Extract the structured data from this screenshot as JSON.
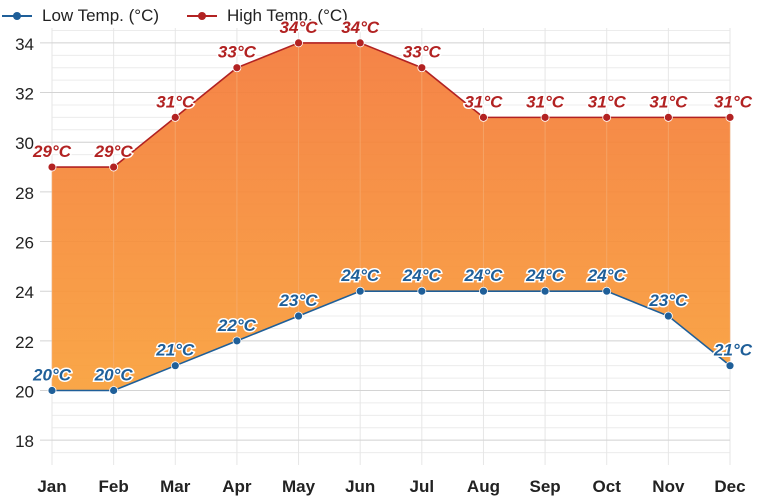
{
  "chart_data": {
    "type": "area",
    "categories": [
      "Jan",
      "Feb",
      "Mar",
      "Apr",
      "May",
      "Jun",
      "Jul",
      "Aug",
      "Sep",
      "Oct",
      "Nov",
      "Dec"
    ],
    "series": [
      {
        "name": "Low Temp. (°C)",
        "values": [
          20,
          20,
          21,
          22,
          23,
          24,
          24,
          24,
          24,
          24,
          23,
          21
        ]
      },
      {
        "name": "High Temp. (°C)",
        "values": [
          29,
          29,
          31,
          33,
          34,
          34,
          33,
          31,
          31,
          31,
          31,
          31
        ]
      }
    ],
    "data_labels": {
      "low": [
        "20°C",
        "20°C",
        "21°C",
        "22°C",
        "23°C",
        "24°C",
        "24°C",
        "24°C",
        "24°C",
        "24°C",
        "23°C",
        "21°C"
      ],
      "high": [
        "29°C",
        "29°C",
        "31°C",
        "33°C",
        "34°C",
        "34°C",
        "33°C",
        "31°C",
        "31°C",
        "31°C",
        "31°C",
        "31°C"
      ]
    },
    "ylim": [
      17,
      34.6
    ],
    "yticks": [
      18,
      20,
      22,
      24,
      26,
      28,
      30,
      32,
      34
    ],
    "grid": true,
    "legend": "top-left",
    "colors": {
      "low": "#1f5f99",
      "high": "#b22222",
      "fill_top": "#f47a3a",
      "fill_bottom": "#f9a03a",
      "grid": "#e3e3e3"
    }
  }
}
